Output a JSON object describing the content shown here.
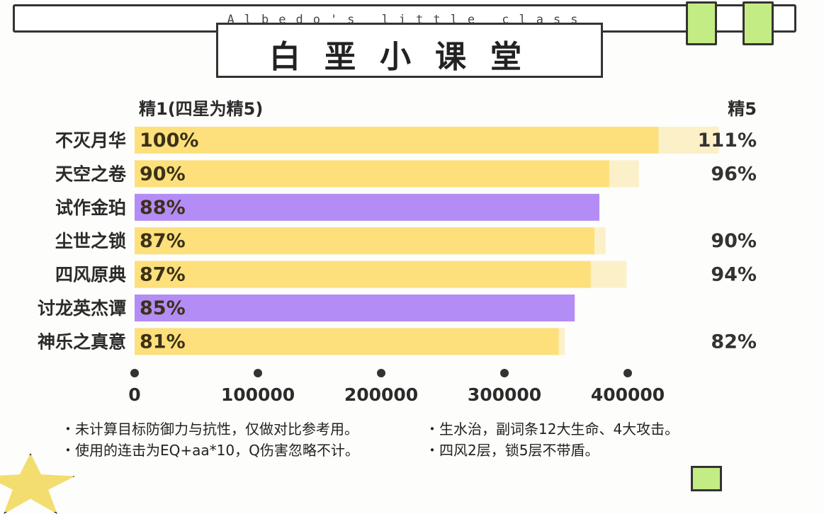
{
  "header": {
    "subtitle": "Albedo's little class",
    "title": "白垩小课堂"
  },
  "chart_data": {
    "type": "bar",
    "orientation": "horizontal",
    "column_header_left": "精1(四星为精5)",
    "column_header_right": "精5",
    "categories": [
      "不灭月华",
      "天空之卷",
      "试作金珀",
      "尘世之锁",
      "四风原典",
      "讨龙英杰谭",
      "神乐之真意"
    ],
    "series": [
      {
        "name": "精1(四星为精5)",
        "values": [
          425000,
          385000,
          377000,
          373000,
          370000,
          357000,
          344000
        ],
        "labels": [
          "100%",
          "90%",
          "88%",
          "87%",
          "87%",
          "85%",
          "81%"
        ]
      },
      {
        "name": "精5",
        "values": [
          474000,
          409000,
          null,
          382000,
          399000,
          null,
          349000
        ],
        "labels": [
          "111%",
          "96%",
          "",
          "90%",
          "94%",
          "",
          "82%"
        ]
      }
    ],
    "bar_colors": [
      "#fde07c",
      "#fde07c",
      "#b48cf5",
      "#fde07c",
      "#fde07c",
      "#b48cf5",
      "#fde07c"
    ],
    "refine_color": "#fbf0c8",
    "x_ticks": [
      0,
      100000,
      200000,
      300000,
      400000
    ],
    "xlim": [
      0,
      500000
    ]
  },
  "notes": [
    "・未计算目标防御力与抗性，仅做对比参考用。",
    "・使用的连击为EQ+aa*10，Q伤害忽略不计。",
    "・生水治，副词条12大生命、4大攻击。",
    "・四风2层，锁5层不带盾。"
  ]
}
